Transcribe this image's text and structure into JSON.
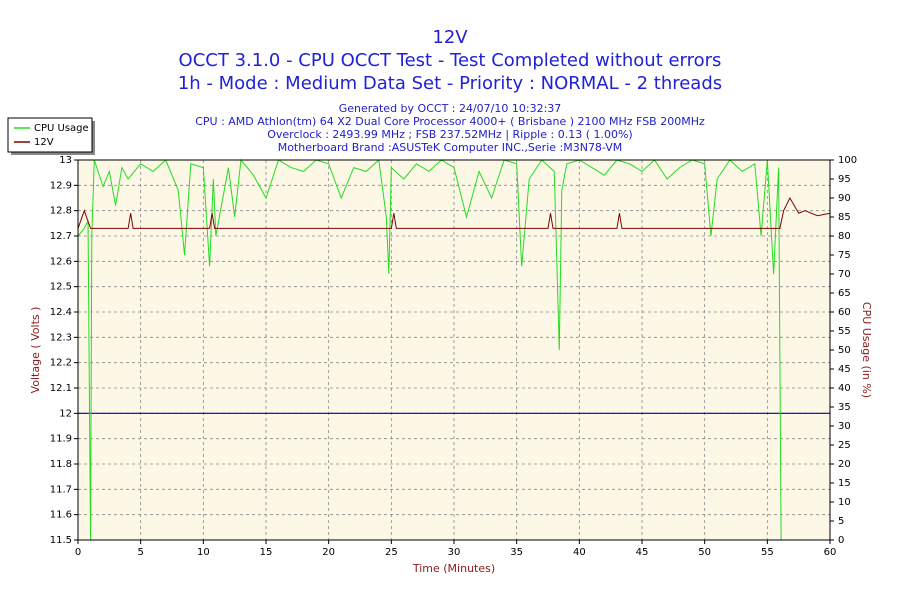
{
  "chart_data": {
    "type": "line",
    "title": "12V",
    "subtitle": [
      "OCCT 3.1.0 - CPU OCCT Test - Test Completed without errors",
      "1h - Mode : Medium Data Set - Priority : NORMAL - 2 threads"
    ],
    "info": [
      "Generated by OCCT : 24/07/10 10:32:37",
      "CPU : AMD Athlon(tm) 64 X2 Dual Core Processor 4000+ ( Brisbane ) 2100 MHz FSB 200MHz",
      "Overclock : 2493.99 MHz ; FSB 237.52MHz | Ripple : 0.13 ( 1.00%)",
      "Motherboard Brand :ASUSTeK Computer INC.,Serie :M3N78-VM"
    ],
    "xlabel": "Time (Minutes)",
    "ylabel": "Voltage ( Volts )",
    "y2label": "CPU Usage (in %)",
    "xlim": [
      0,
      60
    ],
    "xticks": [
      0,
      5,
      10,
      15,
      20,
      25,
      30,
      35,
      40,
      45,
      50,
      55,
      60
    ],
    "ylim": [
      11.5,
      13
    ],
    "yticks": [
      11.5,
      11.6,
      11.7,
      11.8,
      11.9,
      12,
      12.1,
      12.2,
      12.3,
      12.4,
      12.5,
      12.6,
      12.7,
      12.8,
      12.9,
      13
    ],
    "y2lim": [
      0,
      100
    ],
    "y2ticks": [
      0,
      5,
      10,
      15,
      20,
      25,
      30,
      35,
      40,
      45,
      50,
      55,
      60,
      65,
      70,
      75,
      80,
      85,
      90,
      95,
      100
    ],
    "grid": true,
    "reference_line": {
      "value": 12,
      "color": "#0000c0"
    },
    "legend": "top-left",
    "series": [
      {
        "name": "CPU Usage",
        "color": "#22dd22",
        "axis": "y2",
        "x": [
          0,
          0.5,
          0.8,
          1.0,
          1.1,
          1.3,
          2,
          2.5,
          3,
          3.5,
          4,
          5,
          6,
          7,
          8,
          8.5,
          9,
          10,
          10.5,
          10.8,
          11,
          12,
          12.5,
          13,
          14,
          15,
          16,
          17,
          18,
          19,
          20,
          21,
          22,
          23,
          24,
          24.6,
          24.8,
          25,
          26,
          27,
          28,
          29,
          30,
          31,
          32,
          33,
          34,
          35,
          35.4,
          36,
          37,
          38,
          38.4,
          38.6,
          39,
          40,
          41,
          42,
          43,
          44,
          45,
          46,
          47,
          48,
          49,
          50,
          50.5,
          51,
          52,
          53,
          54,
          54.5,
          55,
          55.5,
          55.9,
          56.1,
          57,
          60
        ],
        "values": [
          80,
          82,
          84,
          0,
          80,
          100,
          93,
          97,
          88,
          98,
          95,
          99,
          97,
          100,
          92,
          75,
          99,
          98,
          72,
          95,
          80,
          98,
          85,
          100,
          96,
          90,
          100,
          98,
          97,
          100,
          99,
          90,
          98,
          97,
          100,
          85,
          70,
          98,
          95,
          99,
          97,
          100,
          98,
          85,
          97,
          90,
          100,
          99,
          72,
          95,
          100,
          97,
          50,
          92,
          99,
          100,
          98,
          96,
          100,
          99,
          97,
          100,
          95,
          98,
          100,
          99,
          80,
          95,
          100,
          97,
          99,
          80,
          100,
          70,
          98,
          0,
          0,
          0
        ]
      },
      {
        "name": "12V",
        "color": "#800000",
        "x": [
          0,
          0.5,
          1,
          4,
          4.2,
          4.4,
          10.5,
          10.7,
          10.9,
          25,
          25.2,
          25.4,
          37.5,
          37.7,
          37.9,
          43,
          43.2,
          43.4,
          56,
          56.3,
          56.8,
          57.5,
          58,
          59,
          60
        ],
        "values": [
          12.73,
          12.8,
          12.73,
          12.73,
          12.79,
          12.73,
          12.73,
          12.79,
          12.73,
          12.73,
          12.79,
          12.73,
          12.73,
          12.79,
          12.73,
          12.73,
          12.79,
          12.73,
          12.73,
          12.8,
          12.85,
          12.79,
          12.8,
          12.78,
          12.79
        ]
      }
    ]
  }
}
